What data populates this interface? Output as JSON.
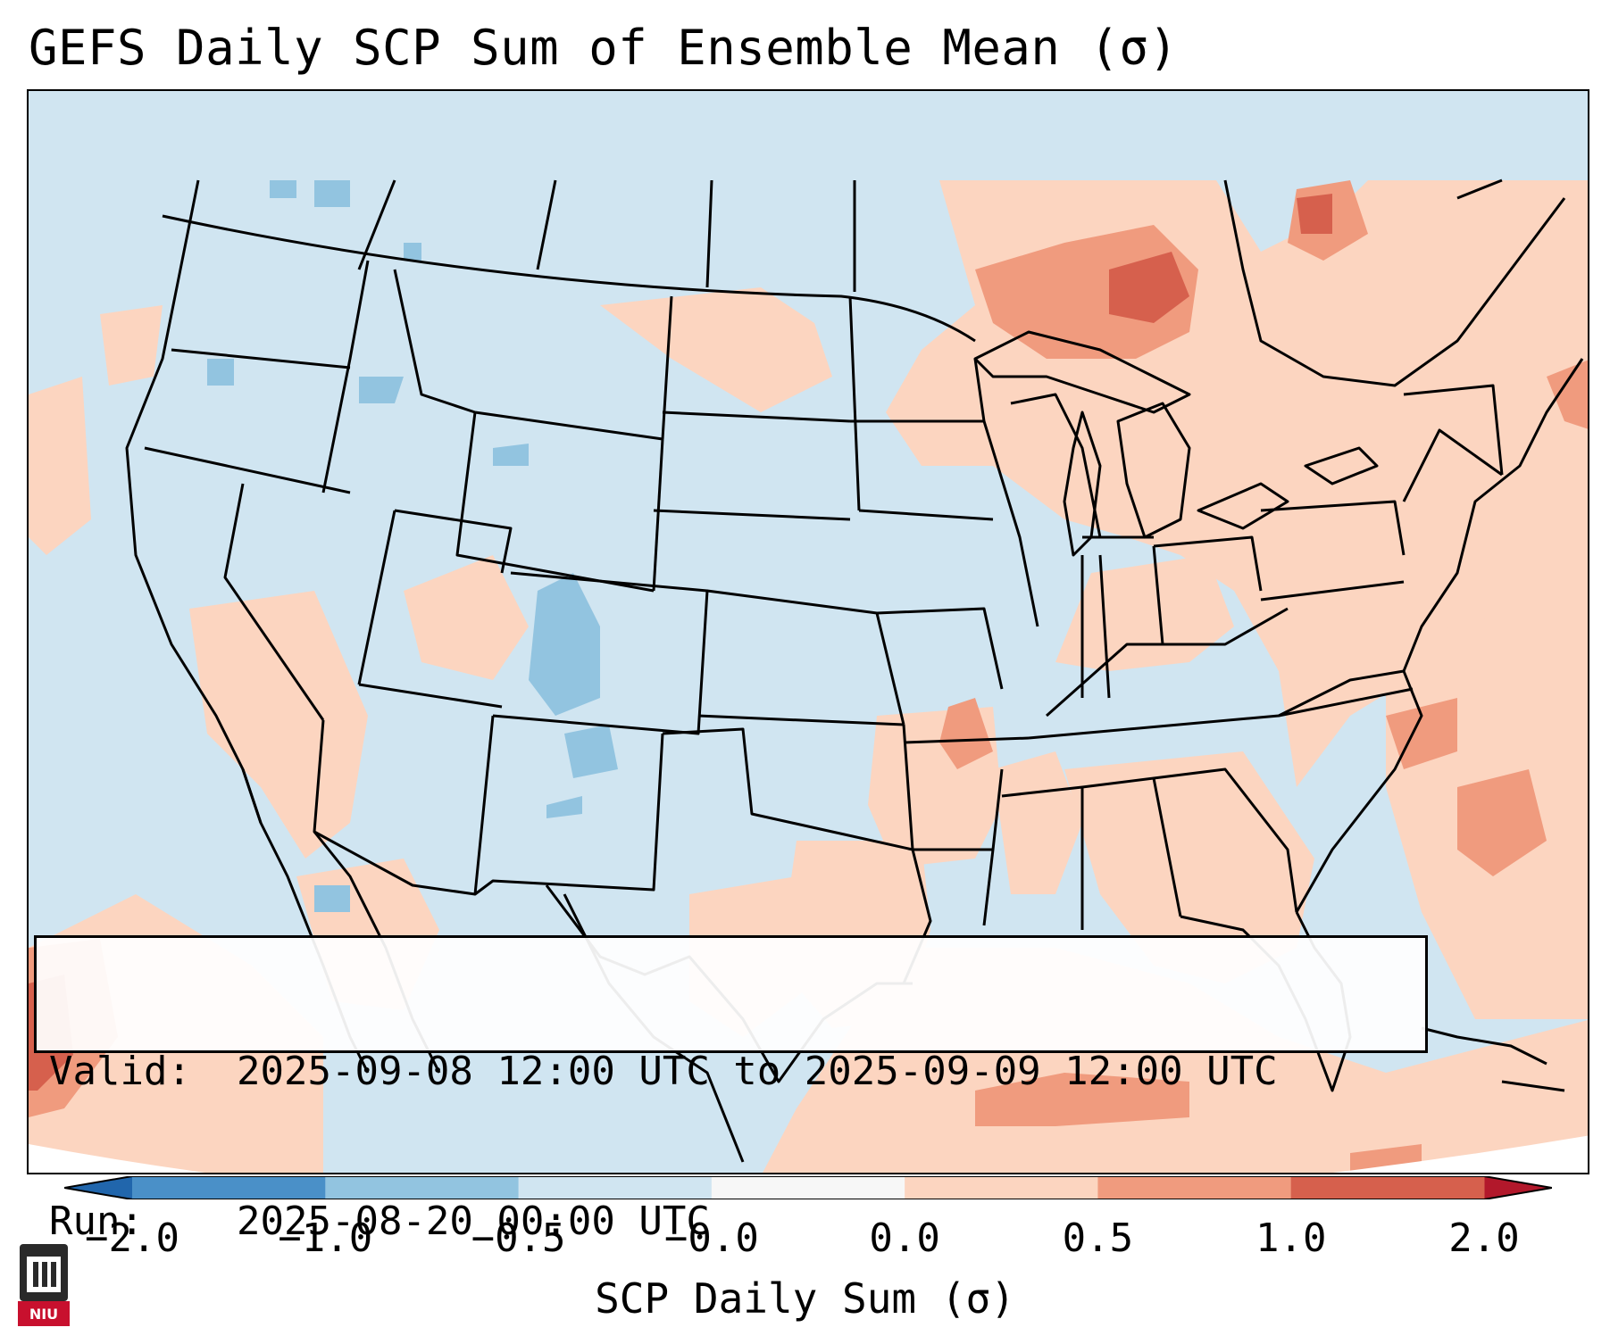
{
  "title": "GEFS Daily SCP Sum of Ensemble Mean (σ)",
  "info": {
    "valid_label": "Valid:",
    "valid_value": "2025-09-08 12:00 UTC to 2025-09-09 12:00 UTC",
    "run_label": "Run:",
    "run_value": "2025-08-20 00:00 UTC"
  },
  "colorbar": {
    "label": "SCP Daily Sum (σ)",
    "ticks": [
      "−2.0",
      "−1.0",
      "−0.5",
      "−0.0",
      "0.0",
      "0.5",
      "1.0",
      "2.0"
    ],
    "bins": [
      {
        "from": -2.0,
        "to": -1.0,
        "color": "#4a90c8"
      },
      {
        "from": -1.0,
        "to": -0.5,
        "color": "#92c4e0"
      },
      {
        "from": -0.5,
        "to": -0.0,
        "color": "#d0e5f1"
      },
      {
        "from": -0.0,
        "to": 0.0,
        "color": "#f7f7f7"
      },
      {
        "from": 0.0,
        "to": 0.5,
        "color": "#fcd5c0"
      },
      {
        "from": 0.5,
        "to": 1.0,
        "color": "#f09b7e"
      },
      {
        "from": 1.0,
        "to": 2.0,
        "color": "#d6604d"
      }
    ],
    "extend_low_color": "#2166ac",
    "extend_high_color": "#b2182b"
  },
  "map": {
    "projection": "Lambert Conformal Conic",
    "region": "CONUS",
    "background_value_color": "#d0e5f1",
    "positive_anomaly_areas": [
      "Upper Great Lakes / Ontario",
      "Ohio Valley",
      "Arkansas / Lower Mississippi Valley",
      "Southeast US / Gulf Coast",
      "Southwest / Baja California",
      "Western Atlantic"
    ],
    "negative_anomaly_areas": [
      "Colorado Rockies",
      "Northern Rockies",
      "Pacific Northwest"
    ]
  },
  "logo": {
    "text": "NIU",
    "color": "#c8102e"
  }
}
